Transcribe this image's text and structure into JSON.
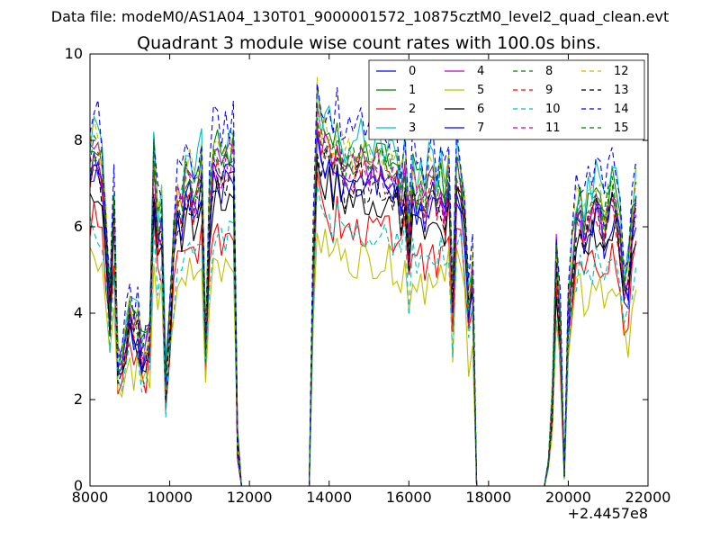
{
  "page": {
    "header": "Data file: modeM0/AS1A04_130T01_9000001572_10875cztM0_level2_quad_clean.evt"
  },
  "chart_data": {
    "type": "line",
    "title": "Quadrant 3 module wise count rates with 100.0s bins.",
    "xlabel": "",
    "ylabel": "",
    "x_offset_label": "+2.4457e8",
    "xlim": [
      8000,
      22000
    ],
    "ylim": [
      0,
      10
    ],
    "xticks": [
      "8000",
      "10000",
      "12000",
      "14000",
      "16000",
      "18000",
      "20000",
      "22000"
    ],
    "yticks": [
      "0",
      "2",
      "4",
      "6",
      "8",
      "10"
    ],
    "grid": false,
    "legend": {
      "placement": "top-right",
      "columns": 4
    },
    "x": [
      8000,
      8100,
      8200,
      8300,
      8400,
      8500,
      8600,
      8700,
      8800,
      8900,
      9000,
      9100,
      9200,
      9300,
      9400,
      9500,
      9600,
      9700,
      9800,
      9900,
      10000,
      10100,
      10200,
      10300,
      10400,
      10500,
      10600,
      10700,
      10800,
      10900,
      11000,
      11100,
      11200,
      11300,
      11400,
      11500,
      11600,
      11700,
      11800,
      11900,
      12000,
      12100,
      12200,
      12300,
      12400,
      12500,
      12600,
      12700,
      12800,
      12900,
      13000,
      13100,
      13200,
      13300,
      13400,
      13500,
      13600,
      13700,
      13800,
      13900,
      14000,
      14100,
      14200,
      14300,
      14400,
      14500,
      14600,
      14700,
      14800,
      14900,
      15000,
      15100,
      15200,
      15300,
      15400,
      15500,
      15600,
      15700,
      15800,
      15900,
      16000,
      16100,
      16200,
      16300,
      16400,
      16500,
      16600,
      16700,
      16800,
      16900,
      17000,
      17100,
      17200,
      17300,
      17400,
      17500,
      17600,
      17700,
      17800,
      17900,
      18000,
      18100,
      18200,
      18300,
      18400,
      18500,
      18600,
      18700,
      18800,
      18900,
      19000,
      19100,
      19200,
      19300,
      19400,
      19500,
      19600,
      19700,
      19800,
      19900,
      20000,
      20100,
      20200,
      20300,
      20400,
      20500,
      20600,
      20700,
      20800,
      20900,
      21000,
      21100,
      21200,
      21300,
      21400,
      21500,
      21600,
      21700
    ],
    "base_profile": [
      7.0,
      7.2,
      7.1,
      6.8,
      5.5,
      4.0,
      6.0,
      2.6,
      2.8,
      3.2,
      3.6,
      3.4,
      3.5,
      2.8,
      3.0,
      3.3,
      7.0,
      5.5,
      5.8,
      2.3,
      3.6,
      5.2,
      6.2,
      6.0,
      6.5,
      6.6,
      6.2,
      6.4,
      6.8,
      3.0,
      6.0,
      7.0,
      7.0,
      6.7,
      6.9,
      7.0,
      7.1,
      1.0,
      0.0,
      0.0,
      0.0,
      0.0,
      0.0,
      0.0,
      0.0,
      0.0,
      0.0,
      0.0,
      0.0,
      0.0,
      0.0,
      0.0,
      0.0,
      0.0,
      0.0,
      0.0,
      4.8,
      8.0,
      7.4,
      7.3,
      7.3,
      6.9,
      7.4,
      7.0,
      6.8,
      7.0,
      6.8,
      6.9,
      7.0,
      6.9,
      6.8,
      6.9,
      6.9,
      6.9,
      6.8,
      6.8,
      6.7,
      6.8,
      6.2,
      6.8,
      5.2,
      6.6,
      6.2,
      6.5,
      6.0,
      6.5,
      6.6,
      6.1,
      6.5,
      6.0,
      6.7,
      4.0,
      6.8,
      6.5,
      5.8,
      3.9,
      4.7,
      0.0,
      0.0,
      0.0,
      0.0,
      0.0,
      0.0,
      0.0,
      0.0,
      0.0,
      0.0,
      0.0,
      0.0,
      0.0,
      0.0,
      0.0,
      0.0,
      0.0,
      0.0,
      0.5,
      1.8,
      5.0,
      3.5,
      0.2,
      3.8,
      4.8,
      5.8,
      6.0,
      5.5,
      5.8,
      6.0,
      6.2,
      6.0,
      5.6,
      6.0,
      6.3,
      6.0,
      5.4,
      4.4,
      4.5,
      5.6,
      6.2
    ],
    "series": [
      {
        "name": "0",
        "color": "#0000ff",
        "dashed": false,
        "scale": 1.0,
        "seed": 1
      },
      {
        "name": "1",
        "color": "#008000",
        "dashed": false,
        "scale": 1.12,
        "seed": 2
      },
      {
        "name": "2",
        "color": "#ff0000",
        "dashed": false,
        "scale": 0.86,
        "seed": 3
      },
      {
        "name": "3",
        "color": "#00bfbf",
        "dashed": false,
        "scale": 1.16,
        "seed": 4
      },
      {
        "name": "4",
        "color": "#bf00bf",
        "dashed": false,
        "scale": 1.08,
        "seed": 5
      },
      {
        "name": "5",
        "color": "#bfbf00",
        "dashed": false,
        "scale": 0.76,
        "seed": 6
      },
      {
        "name": "6",
        "color": "#000000",
        "dashed": false,
        "scale": 0.96,
        "seed": 7
      },
      {
        "name": "7",
        "color": "#0000ff",
        "dashed": false,
        "scale": 1.02,
        "seed": 8
      },
      {
        "name": "8",
        "color": "#008000",
        "dashed": true,
        "scale": 1.1,
        "seed": 9
      },
      {
        "name": "9",
        "color": "#ff0000",
        "dashed": true,
        "scale": 1.04,
        "seed": 10
      },
      {
        "name": "10",
        "color": "#00bfbf",
        "dashed": true,
        "scale": 0.84,
        "seed": 11
      },
      {
        "name": "11",
        "color": "#bf00bf",
        "dashed": true,
        "scale": 1.06,
        "seed": 12
      },
      {
        "name": "12",
        "color": "#bfbf00",
        "dashed": true,
        "scale": 1.13,
        "seed": 13
      },
      {
        "name": "13",
        "color": "#000000",
        "dashed": true,
        "scale": 1.01,
        "seed": 14
      },
      {
        "name": "14",
        "color": "#0000ff",
        "dashed": true,
        "scale": 1.2,
        "seed": 15
      },
      {
        "name": "15",
        "color": "#008000",
        "dashed": true,
        "scale": 1.09,
        "seed": 16
      }
    ]
  }
}
